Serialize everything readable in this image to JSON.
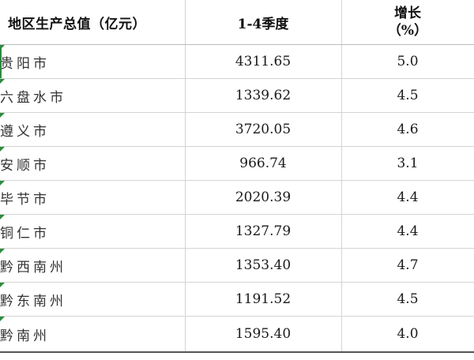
{
  "table": {
    "headers": {
      "region": "地区生产总值（亿元）",
      "value": "1-4季度",
      "growth_line1": "增长",
      "growth_line2": "（%）"
    },
    "rows": [
      {
        "region": "贵阳市",
        "value": "4311.65",
        "growth": "5.0"
      },
      {
        "region": "六盘水市",
        "value": "1339.62",
        "growth": "4.5"
      },
      {
        "region": "遵义市",
        "value": "3720.05",
        "growth": "4.6"
      },
      {
        "region": "安顺市",
        "value": "966.74",
        "growth": "3.1"
      },
      {
        "region": "毕节市",
        "value": "2020.39",
        "growth": "4.4"
      },
      {
        "region": "铜仁市",
        "value": "1327.79",
        "growth": "4.4"
      },
      {
        "region": "黔西南州",
        "value": "1353.40",
        "growth": "4.7"
      },
      {
        "region": "黔东南州",
        "value": "1191.52",
        "growth": "4.5"
      },
      {
        "region": "黔南州",
        "value": "1595.40",
        "growth": "4.0"
      }
    ]
  },
  "colors": {
    "indicator": "#2e8b3d",
    "grid": "#d4d4d4"
  }
}
